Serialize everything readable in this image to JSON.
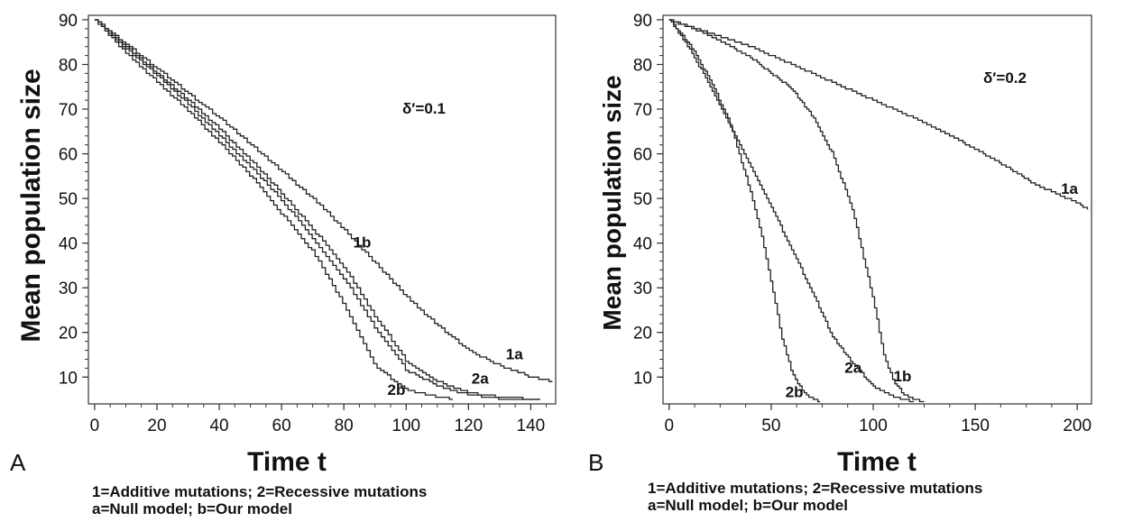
{
  "chart_data": [
    {
      "type": "line",
      "panel_label": "A",
      "xlabel": "Time t",
      "ylabel": "Mean population size",
      "xlim": [
        -2,
        148
      ],
      "ylim": [
        4,
        91
      ],
      "xticks": [
        0,
        20,
        40,
        60,
        80,
        100,
        120,
        140
      ],
      "yticks": [
        10,
        20,
        30,
        40,
        50,
        60,
        70,
        80,
        90
      ],
      "annotation": "δ′=0.1",
      "legend": [
        "1=Additive mutations; 2=Recessive mutations",
        "a=Null model; b=Our model"
      ],
      "grid": false,
      "series": [
        {
          "name": "1a",
          "x": [
            0,
            10,
            20,
            30,
            40,
            50,
            60,
            70,
            80,
            90,
            100,
            110,
            120,
            130,
            140,
            147
          ],
          "y": [
            90,
            84.5,
            79,
            73.5,
            68,
            62,
            56,
            50,
            43,
            35.5,
            28,
            21.5,
            16,
            12.5,
            10,
            9
          ]
        },
        {
          "name": "2a",
          "x": [
            0,
            10,
            20,
            30,
            40,
            50,
            60,
            70,
            80,
            90,
            100,
            110,
            120,
            130,
            143
          ],
          "y": [
            90,
            84,
            78,
            72,
            65.5,
            58.5,
            51,
            43,
            34.5,
            23.5,
            13.5,
            9,
            6.5,
            5.5,
            5
          ]
        },
        {
          "name": "1b",
          "x": [
            0,
            10,
            20,
            30,
            40,
            50,
            60,
            70,
            80,
            90,
            100,
            110,
            120,
            130,
            143
          ],
          "y": [
            90,
            83.5,
            77.5,
            71,
            64,
            57,
            49.5,
            41,
            32,
            21,
            11.5,
            8,
            6,
            5.2,
            4.8
          ]
        },
        {
          "name": "2b",
          "x": [
            0,
            10,
            20,
            30,
            40,
            50,
            60,
            70,
            80,
            90,
            100,
            115
          ],
          "y": [
            90,
            82.5,
            76,
            69.5,
            62.5,
            55,
            46.5,
            38,
            26,
            12.5,
            7,
            5
          ]
        }
      ],
      "curve_labels": [
        {
          "text": "1a",
          "x": 132,
          "y": 14
        },
        {
          "text": "2a",
          "x": 121,
          "y": 8.5
        },
        {
          "text": "1b",
          "x": 83,
          "y": 39
        },
        {
          "text": "2b",
          "x": 94,
          "y": 6
        }
      ]
    },
    {
      "type": "line",
      "panel_label": "B",
      "xlabel": "Time t",
      "ylabel": "Mean population size",
      "xlim": [
        -3,
        207
      ],
      "ylim": [
        4,
        91
      ],
      "xticks": [
        0,
        50,
        100,
        150,
        200
      ],
      "yticks": [
        10,
        20,
        30,
        40,
        50,
        60,
        70,
        80,
        90
      ],
      "annotation": "δ′=0.2",
      "legend": [
        "1=Additive mutations; 2=Recessive mutations",
        "a=Null model; b=Our model"
      ],
      "grid": false,
      "series": [
        {
          "name": "1a",
          "x": [
            0,
            20,
            40,
            60,
            80,
            100,
            120,
            140,
            160,
            180,
            200,
            205
          ],
          "y": [
            90,
            87,
            84,
            80,
            76,
            72,
            68,
            63.5,
            58.5,
            53,
            49,
            47.5
          ]
        },
        {
          "name": "1b",
          "x": [
            0,
            20,
            40,
            60,
            70,
            80,
            90,
            100,
            105,
            110,
            115,
            120,
            125
          ],
          "y": [
            90,
            86.5,
            81.5,
            74.5,
            68.5,
            60,
            47,
            27,
            15,
            9,
            6,
            5,
            4.5
          ]
        },
        {
          "name": "2a",
          "x": [
            0,
            10,
            20,
            30,
            40,
            50,
            60,
            70,
            80,
            90,
            100,
            110,
            120
          ],
          "y": [
            90,
            83.5,
            75,
            66,
            57,
            48,
            38.5,
            29,
            19,
            13,
            8,
            5.5,
            4.5
          ]
        },
        {
          "name": "2b",
          "x": [
            0,
            10,
            20,
            30,
            40,
            45,
            50,
            55,
            60,
            65,
            70,
            74
          ],
          "y": [
            90,
            84.5,
            76.5,
            66.5,
            51,
            42,
            31,
            19,
            11,
            7,
            5.2,
            4.5
          ]
        }
      ],
      "curve_labels": [
        {
          "text": "1a",
          "x": 192,
          "y": 51
        },
        {
          "text": "1b",
          "x": 110,
          "y": 9
        },
        {
          "text": "2a",
          "x": 86,
          "y": 11
        },
        {
          "text": "2b",
          "x": 57,
          "y": 5.5
        }
      ]
    }
  ]
}
